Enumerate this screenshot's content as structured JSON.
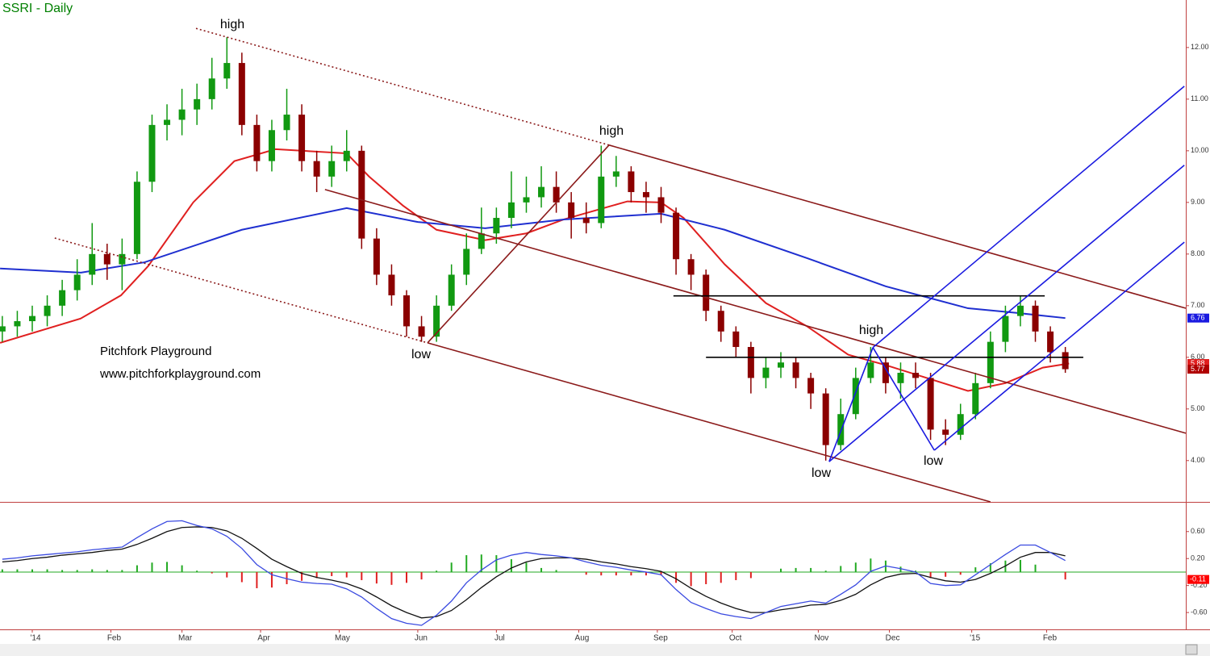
{
  "chart_data": [
    {
      "type": "candlestick",
      "title": "SSRI - Daily",
      "title_color": "#008000",
      "x": [
        -8,
        -4,
        0,
        4,
        8,
        12,
        16,
        20,
        24,
        28,
        32,
        36,
        40,
        44,
        48,
        52,
        56,
        60,
        64,
        68,
        72,
        76,
        80,
        84,
        88,
        92,
        96,
        100,
        104,
        108,
        112,
        116,
        120,
        124,
        128,
        132,
        136,
        140,
        144,
        148,
        152,
        156,
        160,
        164,
        168,
        172,
        176,
        180,
        184,
        188,
        192,
        196,
        200,
        204,
        208,
        212,
        216,
        220,
        224,
        228,
        232,
        236,
        240,
        244,
        248,
        252,
        256,
        260,
        264,
        268,
        272,
        276
      ],
      "open": [
        6.5,
        6.6,
        6.7,
        6.8,
        7.0,
        7.3,
        7.6,
        8.0,
        7.8,
        8.0,
        9.4,
        10.5,
        10.6,
        10.8,
        11.0,
        11.4,
        11.7,
        10.5,
        9.8,
        10.4,
        10.7,
        9.8,
        9.5,
        9.8,
        10.0,
        8.3,
        7.6,
        7.2,
        6.6,
        6.4,
        7.0,
        7.6,
        8.1,
        8.4,
        8.7,
        9.0,
        9.1,
        9.3,
        9.0,
        8.7,
        8.6,
        9.5,
        9.6,
        9.2,
        9.1,
        8.8,
        7.9,
        7.6,
        6.9,
        6.5,
        6.2,
        5.6,
        5.8,
        5.9,
        5.6,
        5.3,
        4.3,
        4.9,
        5.6,
        5.9,
        5.5,
        5.7,
        5.6,
        4.6,
        4.5,
        4.9,
        5.5,
        6.3,
        6.8,
        7.0,
        6.5,
        6.1
      ],
      "high": [
        6.8,
        6.9,
        7.0,
        7.2,
        7.5,
        7.9,
        8.6,
        8.2,
        8.3,
        9.6,
        10.7,
        10.9,
        11.2,
        11.3,
        11.8,
        12.2,
        11.9,
        10.7,
        10.6,
        11.2,
        10.9,
        10.0,
        10.1,
        10.4,
        10.1,
        8.5,
        7.8,
        7.3,
        6.8,
        7.2,
        7.8,
        8.4,
        8.9,
        8.9,
        9.6,
        9.5,
        9.7,
        9.6,
        9.2,
        9.0,
        10.1,
        9.9,
        9.7,
        9.4,
        9.3,
        8.9,
        8.0,
        7.7,
        7.0,
        6.6,
        6.3,
        6.0,
        6.1,
        6.0,
        5.7,
        5.4,
        5.2,
        5.8,
        6.2,
        6.0,
        5.9,
        5.9,
        5.7,
        4.8,
        5.1,
        5.7,
        6.5,
        7.0,
        7.2,
        7.1,
        6.6,
        6.2
      ],
      "low": [
        6.3,
        6.4,
        6.5,
        6.6,
        6.8,
        7.1,
        7.4,
        7.5,
        7.3,
        7.9,
        9.2,
        10.2,
        10.3,
        10.5,
        10.8,
        11.2,
        10.3,
        9.6,
        9.6,
        10.2,
        9.6,
        9.2,
        9.3,
        9.6,
        8.1,
        7.4,
        7.0,
        6.4,
        6.3,
        6.3,
        6.9,
        7.4,
        8.0,
        8.2,
        8.5,
        8.8,
        8.9,
        8.8,
        8.3,
        8.4,
        8.5,
        9.3,
        9.0,
        8.8,
        8.6,
        7.6,
        7.3,
        6.7,
        6.3,
        6.0,
        5.3,
        5.4,
        5.6,
        5.4,
        5.0,
        4.0,
        4.2,
        4.8,
        5.5,
        5.3,
        5.2,
        5.4,
        4.4,
        4.3,
        4.4,
        4.8,
        5.4,
        6.1,
        6.6,
        6.3,
        5.9,
        5.7
      ],
      "close": [
        6.6,
        6.7,
        6.8,
        7.0,
        7.3,
        7.6,
        8.0,
        7.8,
        8.0,
        9.4,
        10.5,
        10.6,
        10.8,
        11.0,
        11.4,
        11.7,
        10.5,
        9.8,
        10.4,
        10.7,
        9.8,
        9.5,
        9.8,
        10.0,
        8.3,
        7.6,
        7.2,
        6.6,
        6.4,
        7.0,
        7.6,
        8.1,
        8.4,
        8.7,
        9.0,
        9.1,
        9.3,
        9.0,
        8.7,
        8.6,
        9.5,
        9.6,
        9.2,
        9.1,
        8.8,
        7.9,
        7.6,
        6.9,
        6.5,
        6.2,
        5.6,
        5.8,
        5.9,
        5.6,
        5.3,
        4.3,
        4.9,
        5.6,
        5.9,
        5.5,
        5.7,
        5.6,
        4.6,
        4.5,
        4.9,
        5.5,
        6.3,
        6.8,
        7.0,
        6.5,
        6.1,
        5.77
      ],
      "up_color": "#119911",
      "down_color": "#8b0000",
      "xlim": [
        -8.62,
        308.19
      ],
      "xticks": [
        {
          "value": 0,
          "label": "'14"
        },
        {
          "value": 21,
          "label": "Feb"
        },
        {
          "value": 40,
          "label": "Mar"
        },
        {
          "value": 61,
          "label": "Apr"
        },
        {
          "value": 82,
          "label": "May"
        },
        {
          "value": 103,
          "label": "Jun"
        },
        {
          "value": 124,
          "label": "Jul"
        },
        {
          "value": 146,
          "label": "Aug"
        },
        {
          "value": 167,
          "label": "Sep"
        },
        {
          "value": 187,
          "label": "Oct"
        },
        {
          "value": 210,
          "label": "Nov"
        },
        {
          "value": 229,
          "label": "Dec"
        },
        {
          "value": 251,
          "label": "'15"
        },
        {
          "value": 271,
          "label": "Feb"
        }
      ],
      "ylim": [
        3.2,
        12.92
      ],
      "yticks": [
        {
          "value": 4,
          "label": "4.00"
        },
        {
          "value": 5,
          "label": "5.00"
        },
        {
          "value": 6,
          "label": "6.00"
        },
        {
          "value": 7,
          "label": "7.00"
        },
        {
          "value": 8,
          "label": "8.00"
        },
        {
          "value": 9,
          "label": "9.00"
        },
        {
          "value": 10,
          "label": "10.00"
        },
        {
          "value": 11,
          "label": "11.00"
        },
        {
          "value": 12,
          "label": "12.00"
        }
      ],
      "overlays": [
        {
          "color": "#e02020",
          "x": [
            -8.6,
            12.9,
            23.7,
            31,
            43,
            54,
            65,
            84,
            90,
            99,
            108,
            121,
            132,
            142,
            159,
            168,
            174,
            185,
            196,
            207,
            218,
            228,
            239,
            250,
            260,
            270,
            277
          ],
          "values": [
            6.28,
            6.75,
            7.2,
            7.77,
            9.0,
            9.8,
            10.03,
            9.95,
            9.5,
            8.94,
            8.47,
            8.27,
            8.4,
            8.67,
            9.02,
            9.0,
            8.7,
            7.8,
            7.05,
            6.6,
            6.05,
            5.85,
            5.6,
            5.35,
            5.5,
            5.8,
            5.88
          ]
        },
        {
          "color": "#1f2fd0",
          "x": [
            -8.6,
            13,
            30,
            56,
            84,
            103,
            121,
            142,
            168,
            185,
            207,
            228,
            250,
            263,
            276
          ],
          "values": [
            7.72,
            7.64,
            7.84,
            8.47,
            8.89,
            8.62,
            8.5,
            8.67,
            8.78,
            8.47,
            7.92,
            7.375,
            6.95,
            6.86,
            6.76
          ]
        }
      ],
      "lines": [
        {
          "color": "#8b1a1a",
          "dotted": true,
          "x": [
            43.75,
            154.1
          ],
          "values": [
            12.37,
            10.11
          ]
        },
        {
          "color": "#8b1a1a",
          "dotted": false,
          "x": [
            154.1,
            308.19
          ],
          "values": [
            10.11,
            6.95
          ]
        },
        {
          "color": "#8b1a1a",
          "dotted": true,
          "x": [
            6.0,
            105.6
          ],
          "values": [
            8.31,
            6.28
          ]
        },
        {
          "color": "#8b1a1a",
          "dotted": false,
          "x": [
            105.6,
            256.0
          ],
          "values": [
            6.28,
            3.2
          ]
        },
        {
          "color": "#8b1a1a",
          "dotted": false,
          "x": [
            78.2,
            308.19
          ],
          "values": [
            9.25,
            4.53
          ]
        },
        {
          "color": "#8b1a1a",
          "dotted": false,
          "x": [
            105.6,
            154.1
          ],
          "values": [
            6.28,
            10.11
          ]
        },
        {
          "color": "#000000",
          "dotted": false,
          "x": [
            171.3,
            270.5
          ],
          "values": [
            7.19,
            7.19
          ]
        },
        {
          "color": "#000000",
          "dotted": false,
          "x": [
            180,
            280.8
          ],
          "values": [
            6.0,
            6.0
          ]
        },
        {
          "color": "#1a1ae0",
          "dotted": false,
          "x": [
            212.9,
            224.6
          ],
          "values": [
            3.98,
            6.19
          ]
        },
        {
          "color": "#1a1ae0",
          "dotted": false,
          "x": [
            224.6,
            241
          ],
          "values": [
            6.19,
            4.2
          ]
        },
        {
          "color": "#1a1ae0",
          "dotted": false,
          "x": [
            224.6,
            307.8
          ],
          "values": [
            6.19,
            11.25
          ]
        },
        {
          "color": "#1a1ae0",
          "dotted": false,
          "x": [
            212.9,
            307.8
          ],
          "values": [
            3.98,
            9.72
          ]
        },
        {
          "color": "#1a1ae0",
          "dotted": false,
          "x": [
            241,
            307.8
          ],
          "values": [
            4.2,
            8.23
          ]
        }
      ],
      "annotations": [
        "high",
        "high",
        "low",
        "high",
        "low",
        "low"
      ],
      "notes": [
        "Pitchfork Playground",
        "www.pitchforkplayground.com"
      ],
      "price_labels": [
        {
          "value": 6.76,
          "color": "#1a1ae0"
        },
        {
          "value": 5.88,
          "color": "#e02020"
        },
        {
          "value": 5.77,
          "color": "#b00000"
        }
      ]
    },
    {
      "type": "macd",
      "x": [
        -8,
        -4,
        0,
        4,
        8,
        12,
        16,
        20,
        24,
        28,
        32,
        36,
        40,
        44,
        48,
        52,
        56,
        60,
        64,
        68,
        72,
        76,
        80,
        84,
        88,
        92,
        96,
        100,
        104,
        108,
        112,
        116,
        120,
        124,
        128,
        132,
        136,
        140,
        144,
        148,
        152,
        156,
        160,
        164,
        168,
        172,
        176,
        180,
        184,
        188,
        192,
        196,
        200,
        204,
        208,
        212,
        216,
        220,
        224,
        228,
        232,
        236,
        240,
        244,
        248,
        252,
        256,
        260,
        264,
        268,
        272,
        276
      ],
      "macd": [
        0.19,
        0.21,
        0.24,
        0.26,
        0.28,
        0.3,
        0.33,
        0.35,
        0.37,
        0.51,
        0.64,
        0.75,
        0.76,
        0.69,
        0.64,
        0.53,
        0.35,
        0.11,
        -0.04,
        -0.1,
        -0.15,
        -0.17,
        -0.18,
        -0.25,
        -0.37,
        -0.54,
        -0.69,
        -0.76,
        -0.79,
        -0.64,
        -0.43,
        -0.16,
        0.03,
        0.18,
        0.25,
        0.29,
        0.26,
        0.24,
        0.21,
        0.15,
        0.1,
        0.07,
        0.03,
        0.0,
        -0.04,
        -0.26,
        -0.45,
        -0.54,
        -0.62,
        -0.66,
        -0.69,
        -0.6,
        -0.51,
        -0.47,
        -0.43,
        -0.46,
        -0.33,
        -0.19,
        0.01,
        0.09,
        0.05,
        0.0,
        -0.17,
        -0.2,
        -0.19,
        -0.04,
        0.11,
        0.26,
        0.4,
        0.4,
        0.29,
        0.17
      ],
      "signal": [
        0.15,
        0.17,
        0.2,
        0.22,
        0.25,
        0.27,
        0.29,
        0.32,
        0.34,
        0.41,
        0.5,
        0.6,
        0.66,
        0.67,
        0.66,
        0.61,
        0.5,
        0.35,
        0.19,
        0.08,
        -0.02,
        -0.08,
        -0.12,
        -0.17,
        -0.25,
        -0.37,
        -0.5,
        -0.6,
        -0.68,
        -0.66,
        -0.57,
        -0.41,
        -0.23,
        -0.07,
        0.06,
        0.15,
        0.2,
        0.21,
        0.21,
        0.19,
        0.15,
        0.12,
        0.08,
        0.05,
        0.01,
        -0.1,
        -0.24,
        -0.36,
        -0.46,
        -0.54,
        -0.6,
        -0.6,
        -0.56,
        -0.53,
        -0.49,
        -0.48,
        -0.42,
        -0.33,
        -0.19,
        -0.08,
        -0.03,
        -0.02,
        -0.08,
        -0.13,
        -0.15,
        -0.11,
        -0.02,
        0.09,
        0.22,
        0.29,
        0.29,
        0.24
      ],
      "histogram": [
        0.04,
        0.04,
        0.04,
        0.04,
        0.03,
        0.03,
        0.04,
        0.03,
        0.03,
        0.1,
        0.14,
        0.15,
        0.1,
        0.02,
        -0.02,
        -0.08,
        -0.15,
        -0.24,
        -0.23,
        -0.18,
        -0.13,
        -0.09,
        -0.06,
        -0.08,
        -0.12,
        -0.17,
        -0.19,
        -0.16,
        -0.11,
        0.02,
        0.14,
        0.25,
        0.26,
        0.25,
        0.19,
        0.14,
        0.06,
        0.03,
        0.0,
        -0.04,
        -0.05,
        -0.05,
        -0.05,
        -0.05,
        -0.05,
        -0.16,
        -0.21,
        -0.18,
        -0.16,
        -0.12,
        -0.09,
        0.0,
        0.05,
        0.06,
        0.06,
        0.02,
        0.09,
        0.14,
        0.2,
        0.17,
        0.08,
        0.02,
        -0.09,
        -0.07,
        -0.04,
        0.07,
        0.13,
        0.17,
        0.18,
        0.11,
        0.0,
        -0.11
      ],
      "macd_color": "#3a4ae0",
      "signal_color": "#111111",
      "up_color": "#22aa22",
      "down_color": "#e02020",
      "ylim": [
        -0.85,
        1.04
      ],
      "yticks": [
        {
          "value": -0.6,
          "label": "-0.60"
        },
        {
          "value": -0.2,
          "label": "-0.20"
        },
        {
          "value": 0.2,
          "label": "0.20"
        },
        {
          "value": 0.6,
          "label": "0.60"
        }
      ],
      "last_value": {
        "value": -0.11,
        "color": "#ff0000"
      }
    }
  ]
}
